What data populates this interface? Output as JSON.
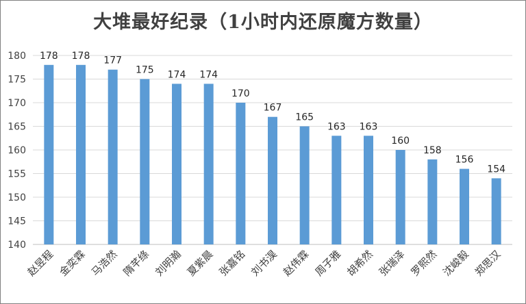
{
  "chart_data": {
    "type": "bar",
    "title": "大堆最好纪录（1小时内还原魔方数量）",
    "xlabel": "",
    "ylabel": "",
    "categories": [
      "赵昱程",
      "金奕霖",
      "马浩然",
      "隋芊绦",
      "刘明瀚",
      "夏紫晨",
      "张嘉铭",
      "刘书淏",
      "赵伟霖",
      "周子雅",
      "胡希然",
      "张瑞泽",
      "罗熙然",
      "沈峻毅",
      "郑思汉"
    ],
    "values": [
      178,
      178,
      177,
      175,
      174,
      174,
      170,
      167,
      165,
      163,
      163,
      160,
      158,
      156,
      154
    ],
    "ylim": [
      140,
      180
    ],
    "yticks": [
      140,
      145,
      150,
      155,
      160,
      165,
      170,
      175,
      180
    ],
    "grid": true,
    "data_labels": true,
    "bar_color": "#5b9bd5"
  }
}
